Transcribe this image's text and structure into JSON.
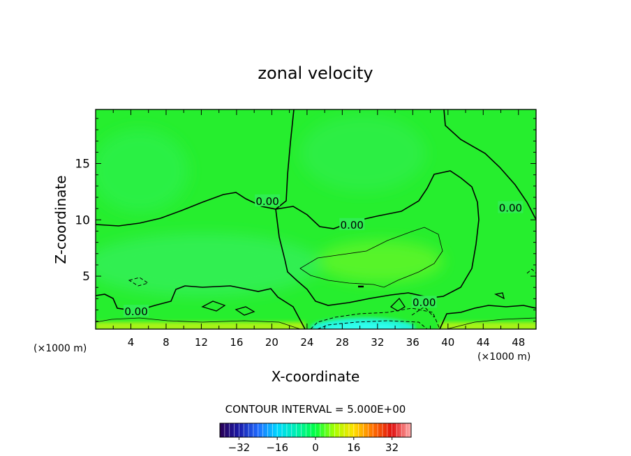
{
  "chart_data": {
    "type": "heatmap",
    "title": "zonal velocity",
    "xlabel": "X-coordinate",
    "ylabel": "Z-coordinate",
    "x_unit": "(×1000 m)",
    "z_unit": "(×1000 m)",
    "xlim": [
      0,
      50
    ],
    "ylim": [
      0.3,
      19.8
    ],
    "x_ticks": [
      "4",
      "8",
      "12",
      "16",
      "20",
      "24",
      "28",
      "32",
      "36",
      "40",
      "44",
      "48"
    ],
    "y_ticks": [
      "5",
      "10",
      "15"
    ],
    "contour_label": "0.00",
    "contour_interval_text": "CONTOUR INTERVAL = 5.000E+00",
    "colorbar": {
      "range": [
        -40,
        40
      ],
      "ticks": [
        "-32",
        "-16",
        "0",
        "16",
        "32"
      ],
      "stops": [
        "#2a0054",
        "#1a1aa8",
        "#1f6bff",
        "#00d8ff",
        "#00f0b0",
        "#00ff40",
        "#a8ff00",
        "#ffe000",
        "#ff7000",
        "#e01010",
        "#ffb0b0"
      ]
    },
    "field_colors": {
      "background": "#26ee2e",
      "upper_left": "#2cf04a",
      "mid_band": "#38f06e",
      "green_yellow": "#5cf52a",
      "cyan_minimum": "#22f5d8",
      "ground_yellow": "#aaf214"
    },
    "annotations": [
      {
        "text": "0.00",
        "x": 19.5,
        "z": 11.7
      },
      {
        "text": "0.00",
        "x": 29.1,
        "z": 9.6
      },
      {
        "text": "0.00",
        "x": 47.1,
        "z": 11.1
      },
      {
        "text": "0.00",
        "x": 4.6,
        "z": 1.9
      },
      {
        "text": "0.00",
        "x": 37.3,
        "z": 2.7
      }
    ]
  }
}
